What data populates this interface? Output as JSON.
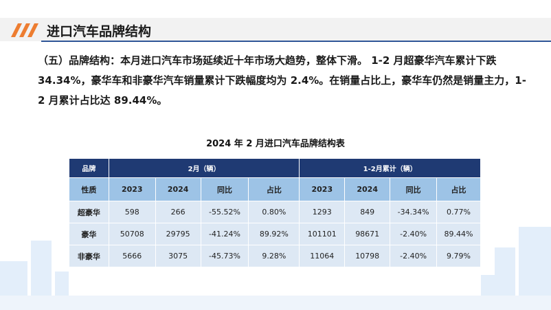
{
  "header": {
    "title": "进口汽车品牌结构"
  },
  "paragraph": "（五）品牌结构：本月进口汽车市场延续近十年市场大趋势，整体下滑。 1-2 月超豪华汽车累计下跌 34.34%，豪华车和非豪华汽车销量累计下跌幅度均为 2.4%。在销量占比上，豪华车仍然是销量主力，1-2 月累计占比达 89.44%。",
  "table": {
    "title": "2024 年 2 月进口汽车品牌结构表",
    "header_groups": [
      "品牌",
      "2月（辆）",
      "1-2月累计（辆）"
    ],
    "columns": [
      "性质",
      "2023",
      "2024",
      "同比",
      "占比",
      "2023",
      "2024",
      "同比",
      "占比"
    ],
    "rows": [
      [
        "超豪华",
        "598",
        "266",
        "-55.52%",
        "0.80%",
        "1293",
        "849",
        "-34.34%",
        "0.77%"
      ],
      [
        "豪华",
        "50708",
        "29795",
        "-41.24%",
        "89.92%",
        "101101",
        "98671",
        "-2.40%",
        "89.44%"
      ],
      [
        "非豪华",
        "5666",
        "3075",
        "-45.73%",
        "9.28%",
        "11064",
        "10798",
        "-2.40%",
        "9.79%"
      ]
    ]
  }
}
